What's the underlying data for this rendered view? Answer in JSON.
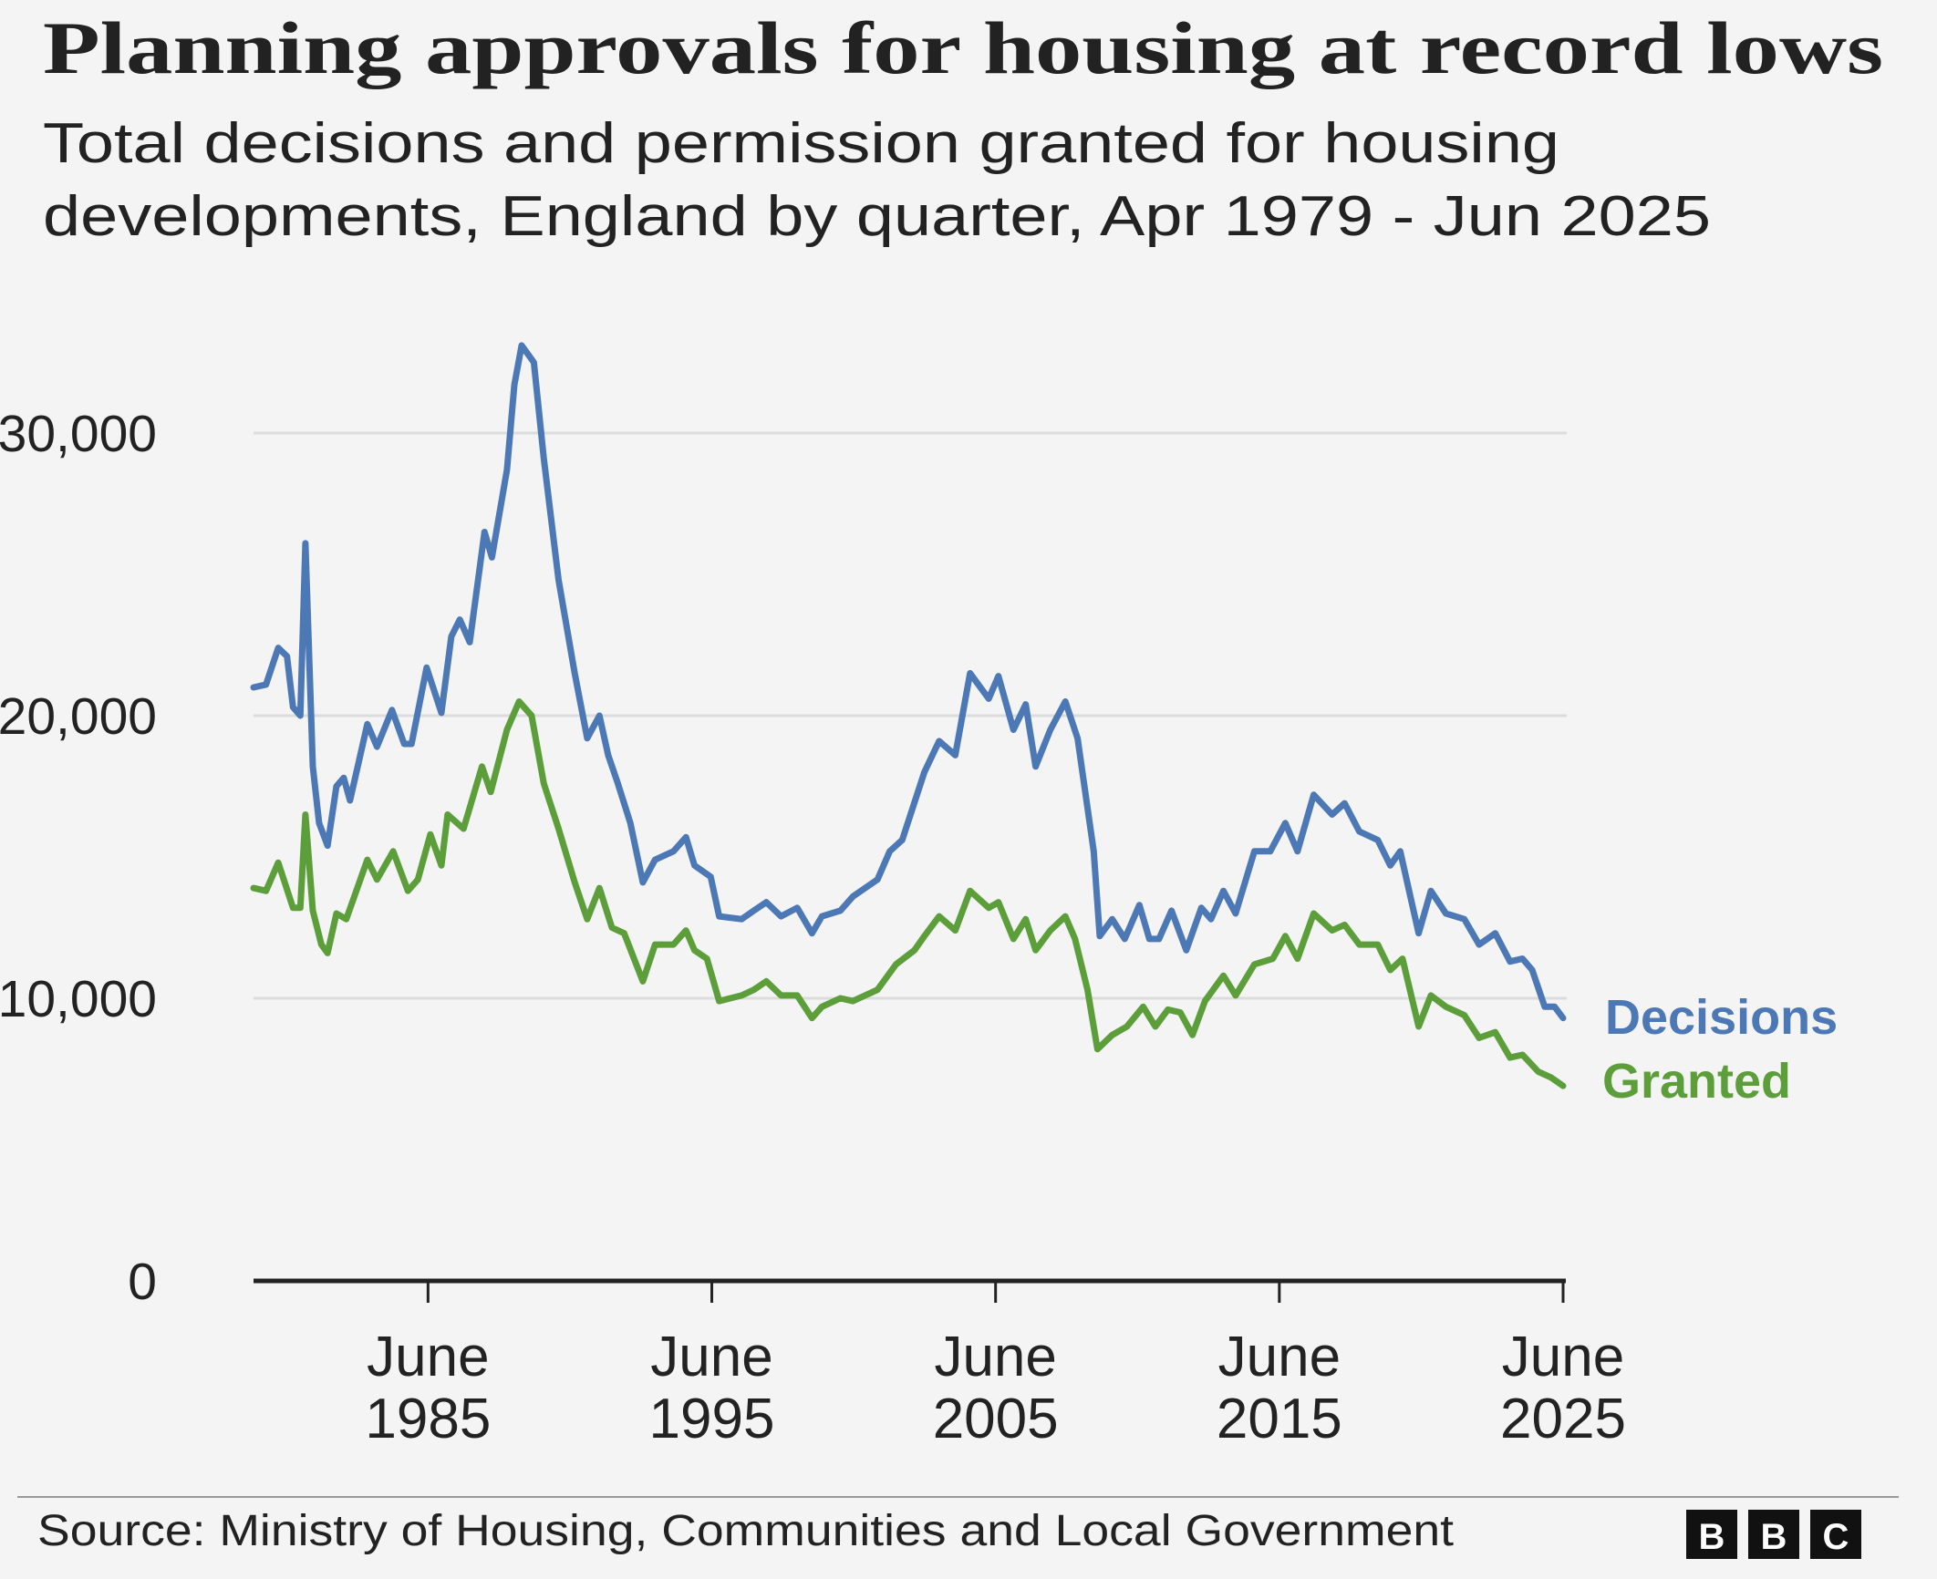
{
  "colors": {
    "decisions": "#4c78b5",
    "granted": "#5c9e3a",
    "background": "#f4f4f4",
    "grid": "#dcdcdc",
    "axis": "#222222"
  },
  "chart_data": {
    "type": "line",
    "title": "Planning approvals for housing at record lows",
    "subtitle_lines": [
      "Total decisions and permission granted for housing",
      "developments, England by quarter, Apr 1979 - Jun 2025"
    ],
    "xlabel": "",
    "ylabel": "",
    "xlim": [
      1979.25,
      2025.4
    ],
    "ylim": [
      0,
      30000
    ],
    "grid": true,
    "legend": "right (direct labels at line ends)",
    "y_ticks": [
      {
        "value": 0,
        "label": "0"
      },
      {
        "value": 10000,
        "label": "10,000"
      },
      {
        "value": 20000,
        "label": "20,000"
      },
      {
        "value": 30000,
        "label": "30,000"
      }
    ],
    "x_ticks": [
      {
        "value": 1985.4,
        "month": "June",
        "year": "1985"
      },
      {
        "value": 1995.4,
        "month": "June",
        "year": "1995"
      },
      {
        "value": 2005.4,
        "month": "June",
        "year": "2005"
      },
      {
        "value": 2015.4,
        "month": "June",
        "year": "2015"
      },
      {
        "value": 2025.4,
        "month": "June",
        "year": "2025"
      }
    ],
    "series": [
      {
        "name": "Decisions",
        "color_key": "decisions",
        "points": [
          [
            1979.25,
            21000
          ],
          [
            1979.69,
            21100
          ],
          [
            1980.12,
            22400
          ],
          [
            1980.43,
            22100
          ],
          [
            1980.64,
            20300
          ],
          [
            1980.9,
            20000
          ],
          [
            1981.08,
            26100
          ],
          [
            1981.34,
            18200
          ],
          [
            1981.56,
            16200
          ],
          [
            1981.86,
            15400
          ],
          [
            1982.17,
            17500
          ],
          [
            1982.43,
            17800
          ],
          [
            1982.65,
            17000
          ],
          [
            1983.26,
            19700
          ],
          [
            1983.6,
            18900
          ],
          [
            1984.13,
            20200
          ],
          [
            1984.56,
            19000
          ],
          [
            1984.82,
            19000
          ],
          [
            1985.35,
            21700
          ],
          [
            1985.87,
            20100
          ],
          [
            1986.22,
            22800
          ],
          [
            1986.52,
            23400
          ],
          [
            1986.87,
            22600
          ],
          [
            1987.39,
            26500
          ],
          [
            1987.65,
            25600
          ],
          [
            1988.18,
            28700
          ],
          [
            1988.44,
            31700
          ],
          [
            1988.7,
            33100
          ],
          [
            1989.13,
            32500
          ],
          [
            1989.48,
            29100
          ],
          [
            1990.0,
            24800
          ],
          [
            1990.57,
            21500
          ],
          [
            1991.01,
            19200
          ],
          [
            1991.44,
            20000
          ],
          [
            1991.75,
            18600
          ],
          [
            1992.09,
            17600
          ],
          [
            1992.53,
            16200
          ],
          [
            1992.97,
            14100
          ],
          [
            1993.4,
            14900
          ],
          [
            1994.05,
            15200
          ],
          [
            1994.49,
            15700
          ],
          [
            1994.79,
            14700
          ],
          [
            1995.36,
            14300
          ],
          [
            1995.66,
            12900
          ],
          [
            1996.45,
            12800
          ],
          [
            1996.88,
            13100
          ],
          [
            1997.32,
            13400
          ],
          [
            1997.84,
            12900
          ],
          [
            1998.41,
            13200
          ],
          [
            1998.93,
            12300
          ],
          [
            1999.28,
            12900
          ],
          [
            1999.93,
            13100
          ],
          [
            2000.37,
            13600
          ],
          [
            2001.24,
            14200
          ],
          [
            2001.67,
            15200
          ],
          [
            2002.11,
            15600
          ],
          [
            2002.89,
            18000
          ],
          [
            2003.41,
            19100
          ],
          [
            2003.98,
            18600
          ],
          [
            2004.5,
            21500
          ],
          [
            2005.16,
            20600
          ],
          [
            2005.5,
            21400
          ],
          [
            2006.03,
            19500
          ],
          [
            2006.46,
            20400
          ],
          [
            2006.81,
            18200
          ],
          [
            2007.33,
            19500
          ],
          [
            2007.86,
            20500
          ],
          [
            2008.29,
            19200
          ],
          [
            2008.86,
            15200
          ],
          [
            2009.07,
            12200
          ],
          [
            2009.51,
            12800
          ],
          [
            2009.95,
            12100
          ],
          [
            2010.47,
            13300
          ],
          [
            2010.82,
            12100
          ],
          [
            2011.16,
            12100
          ],
          [
            2011.6,
            13100
          ],
          [
            2012.12,
            11700
          ],
          [
            2012.65,
            13200
          ],
          [
            2012.99,
            12800
          ],
          [
            2013.43,
            13800
          ],
          [
            2013.86,
            13000
          ],
          [
            2014.52,
            15200
          ],
          [
            2015.08,
            15200
          ],
          [
            2015.61,
            16200
          ],
          [
            2016.04,
            15200
          ],
          [
            2016.61,
            17200
          ],
          [
            2017.26,
            16500
          ],
          [
            2017.7,
            16900
          ],
          [
            2018.22,
            15900
          ],
          [
            2018.87,
            15600
          ],
          [
            2019.31,
            14700
          ],
          [
            2019.66,
            15200
          ],
          [
            2020.31,
            12300
          ],
          [
            2020.74,
            13800
          ],
          [
            2021.27,
            13000
          ],
          [
            2021.92,
            12800
          ],
          [
            2022.44,
            11900
          ],
          [
            2023.01,
            12300
          ],
          [
            2023.53,
            11300
          ],
          [
            2023.97,
            11400
          ],
          [
            2024.31,
            11000
          ],
          [
            2024.75,
            9700
          ],
          [
            2025.1,
            9700
          ],
          [
            2025.4,
            9300
          ]
        ]
      },
      {
        "name": "Granted",
        "color_key": "granted",
        "points": [
          [
            1979.25,
            13900
          ],
          [
            1979.69,
            13800
          ],
          [
            1980.12,
            14800
          ],
          [
            1980.64,
            13200
          ],
          [
            1980.9,
            13200
          ],
          [
            1981.08,
            16500
          ],
          [
            1981.34,
            13100
          ],
          [
            1981.64,
            11900
          ],
          [
            1981.86,
            11600
          ],
          [
            1982.17,
            13000
          ],
          [
            1982.52,
            12800
          ],
          [
            1983.26,
            14900
          ],
          [
            1983.6,
            14200
          ],
          [
            1984.17,
            15200
          ],
          [
            1984.69,
            13800
          ],
          [
            1985.04,
            14200
          ],
          [
            1985.48,
            15800
          ],
          [
            1985.87,
            14700
          ],
          [
            1986.09,
            16500
          ],
          [
            1986.65,
            16000
          ],
          [
            1987.3,
            18200
          ],
          [
            1987.61,
            17300
          ],
          [
            1988.18,
            19500
          ],
          [
            1988.61,
            20500
          ],
          [
            1989.05,
            20000
          ],
          [
            1989.48,
            17600
          ],
          [
            1990.0,
            16000
          ],
          [
            1990.57,
            14100
          ],
          [
            1991.01,
            12800
          ],
          [
            1991.44,
            13900
          ],
          [
            1991.88,
            12500
          ],
          [
            1992.31,
            12300
          ],
          [
            1992.97,
            10600
          ],
          [
            1993.4,
            11900
          ],
          [
            1994.05,
            11900
          ],
          [
            1994.49,
            12400
          ],
          [
            1994.79,
            11700
          ],
          [
            1995.23,
            11400
          ],
          [
            1995.66,
            9900
          ],
          [
            1996.45,
            10100
          ],
          [
            1996.88,
            10300
          ],
          [
            1997.32,
            10600
          ],
          [
            1997.84,
            10100
          ],
          [
            1998.41,
            10100
          ],
          [
            1998.93,
            9300
          ],
          [
            1999.28,
            9700
          ],
          [
            1999.93,
            10000
          ],
          [
            2000.37,
            9900
          ],
          [
            2001.24,
            10300
          ],
          [
            2001.89,
            11200
          ],
          [
            2002.54,
            11700
          ],
          [
            2002.89,
            12200
          ],
          [
            2003.41,
            12900
          ],
          [
            2003.98,
            12400
          ],
          [
            2004.5,
            13800
          ],
          [
            2005.16,
            13200
          ],
          [
            2005.5,
            13400
          ],
          [
            2006.03,
            12100
          ],
          [
            2006.46,
            12800
          ],
          [
            2006.81,
            11700
          ],
          [
            2007.33,
            12400
          ],
          [
            2007.86,
            12900
          ],
          [
            2008.2,
            12100
          ],
          [
            2008.64,
            10300
          ],
          [
            2008.99,
            8200
          ],
          [
            2009.51,
            8700
          ],
          [
            2010.03,
            9000
          ],
          [
            2010.6,
            9700
          ],
          [
            2011.03,
            9000
          ],
          [
            2011.47,
            9600
          ],
          [
            2011.91,
            9500
          ],
          [
            2012.34,
            8700
          ],
          [
            2012.78,
            9900
          ],
          [
            2013.43,
            10800
          ],
          [
            2013.86,
            10100
          ],
          [
            2014.52,
            11200
          ],
          [
            2015.17,
            11400
          ],
          [
            2015.61,
            12200
          ],
          [
            2016.04,
            11400
          ],
          [
            2016.61,
            13000
          ],
          [
            2017.26,
            12400
          ],
          [
            2017.7,
            12600
          ],
          [
            2018.22,
            11900
          ],
          [
            2018.87,
            11900
          ],
          [
            2019.31,
            11000
          ],
          [
            2019.74,
            11400
          ],
          [
            2020.31,
            9000
          ],
          [
            2020.74,
            10100
          ],
          [
            2021.27,
            9700
          ],
          [
            2021.92,
            9400
          ],
          [
            2022.44,
            8600
          ],
          [
            2023.01,
            8800
          ],
          [
            2023.53,
            7900
          ],
          [
            2023.97,
            8000
          ],
          [
            2024.53,
            7400
          ],
          [
            2024.97,
            7200
          ],
          [
            2025.4,
            6900
          ]
        ]
      }
    ],
    "source": "Source: Ministry of Housing, Communities and Local Government",
    "logo_text": "BBC"
  }
}
